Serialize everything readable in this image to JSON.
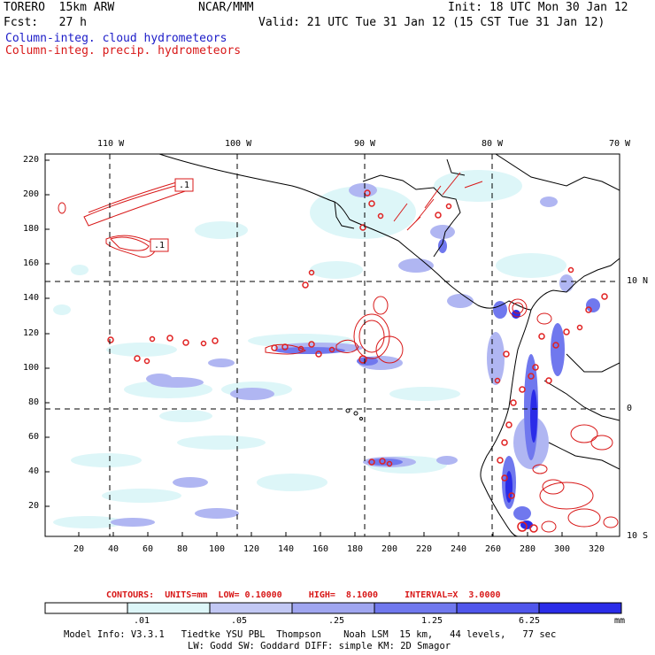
{
  "header": {
    "model": "TORERO  15km ARW",
    "org": "NCAR/MMM",
    "init": "Init: 18 UTC Mon 30 Jan 12",
    "fcst": "Fcst:   27 h",
    "valid": "Valid: 21 UTC Tue 31 Jan 12 (15 CST Tue 31 Jan 12)",
    "field1": "Column-integ. cloud hydrometeors",
    "field2": "Column-integ. precip. hydrometeors"
  },
  "map": {
    "lon_labels": [
      "110 W",
      "100 W",
      "90 W",
      "80 W",
      "70 W"
    ],
    "lat_labels": [
      "10 N",
      "0",
      "10 S"
    ],
    "y_ticks": [
      "220",
      "200",
      "180",
      "160",
      "140",
      "120",
      "100",
      "80",
      "60",
      "40",
      "20"
    ],
    "x_ticks": [
      "20",
      "40",
      "60",
      "80",
      "100",
      "120",
      "140",
      "160",
      "180",
      "200",
      "220",
      "240",
      "260",
      "280",
      "300",
      "320"
    ],
    "contour_labels": [
      ".1",
      ".1"
    ]
  },
  "contour_info": {
    "label": "CONTOURS:  UNITS=mm  LOW= 0.10000     HIGH=  8.1000     INTERVAL=X  3.0000"
  },
  "colorbar": {
    "ticks": [
      ".01",
      ".05",
      ".25",
      "1.25",
      "6.25"
    ],
    "unit": "mm",
    "colors": [
      "#ffffff",
      "#ddf6f8",
      "#c2c8f4",
      "#a0a6f0",
      "#7078ee",
      "#5056ec",
      "#2a2ce8"
    ]
  },
  "footer": {
    "line1": "Model Info: V3.3.1   Tiedtke YSU PBL  Thompson    Noah LSM  15 km,   44 levels,   77 sec",
    "line2": "LW: Godd SW: Goddard DIFF: simple KM: 2D Smagor"
  }
}
